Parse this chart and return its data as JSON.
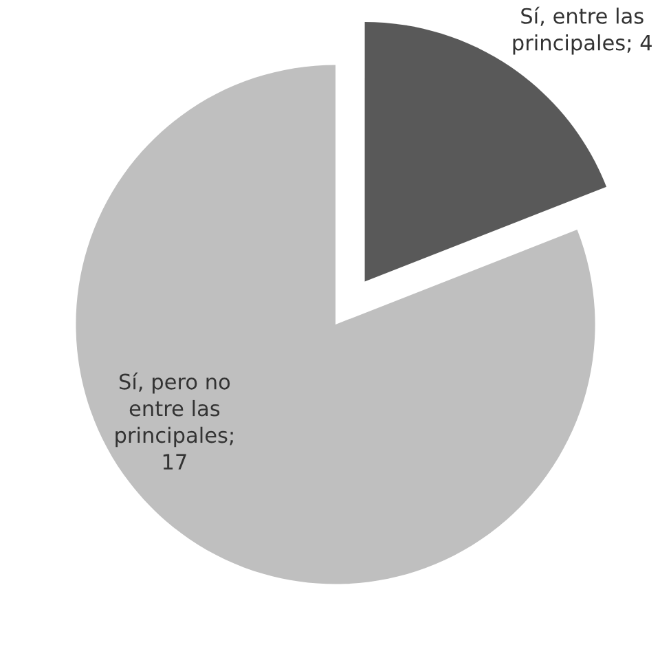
{
  "chart_data": {
    "type": "pie",
    "categories": [
      null,
      null
    ],
    "values": [
      4,
      17
    ],
    "colors": [
      "#595959",
      "#bfbfbf"
    ],
    "value_labels": [
      "Sí, entre las principales; 4",
      "Sí, pero no entre las principales; 17"
    ]
  }
}
